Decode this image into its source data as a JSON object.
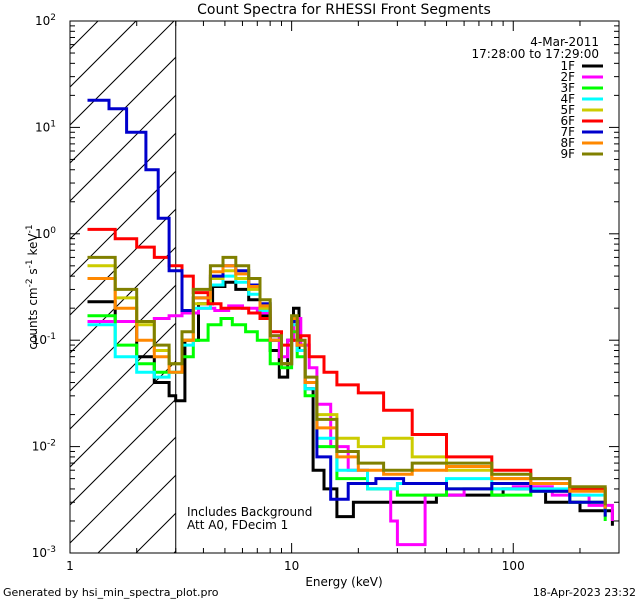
{
  "chart_data": {
    "type": "line",
    "title": "Count Spectra for RHESSI Front Segments",
    "xlabel": "Energy (keV)",
    "ylabel_parts": [
      "counts cm",
      "-2",
      " s",
      "-1",
      " keV",
      "-1"
    ],
    "x_scale": "log",
    "y_scale": "log",
    "xlim": [
      1,
      300
    ],
    "ylim": [
      0.001,
      100
    ],
    "x_ticks": [
      {
        "value": 1,
        "label": "1"
      },
      {
        "value": 10,
        "label": "10"
      },
      {
        "value": 100,
        "label": "100"
      }
    ],
    "y_ticks": [
      {
        "value": 0.001,
        "base": "10",
        "exp": "-3"
      },
      {
        "value": 0.01,
        "base": "10",
        "exp": "-2"
      },
      {
        "value": 0.1,
        "base": "10",
        "exp": "-1"
      },
      {
        "value": 1,
        "base": "10",
        "exp": "0"
      },
      {
        "value": 10,
        "base": "10",
        "exp": "1"
      },
      {
        "value": 100,
        "base": "10",
        "exp": "2"
      }
    ],
    "shaded_region_keV": [
      1,
      3
    ],
    "date": "4-Mar-2011",
    "time_range": "17:28:00 to 17:29:00",
    "annotations": [
      "Includes Background",
      "Att A0, FDecim 1"
    ],
    "series": [
      {
        "name": "1F",
        "color": "#000000",
        "points": [
          [
            1.2,
            0.23
          ],
          [
            1.6,
            0.15
          ],
          [
            2.0,
            0.07
          ],
          [
            2.4,
            0.04
          ],
          [
            2.8,
            0.03
          ],
          [
            3.0,
            0.027
          ],
          [
            3.3,
            0.1
          ],
          [
            3.8,
            0.22
          ],
          [
            4.4,
            0.32
          ],
          [
            5.0,
            0.35
          ],
          [
            5.6,
            0.3
          ],
          [
            6.4,
            0.24
          ],
          [
            7.2,
            0.17
          ],
          [
            8.0,
            0.08
          ],
          [
            8.8,
            0.045
          ],
          [
            9.6,
            0.1
          ],
          [
            10.2,
            0.2
          ],
          [
            10.8,
            0.08
          ],
          [
            11.5,
            0.035
          ],
          [
            12.5,
            0.006
          ],
          [
            14,
            0.004
          ],
          [
            16,
            0.0022
          ],
          [
            19,
            0.003
          ],
          [
            24,
            0.003
          ],
          [
            32,
            0.003
          ],
          [
            45,
            0.0035
          ],
          [
            60,
            0.0035
          ],
          [
            90,
            0.004
          ],
          [
            140,
            0.003
          ],
          [
            200,
            0.0025
          ],
          [
            280,
            0.0018
          ]
        ]
      },
      {
        "name": "2F",
        "color": "#ff00ff",
        "points": [
          [
            1.2,
            0.15
          ],
          [
            1.6,
            0.15
          ],
          [
            2.0,
            0.15
          ],
          [
            2.4,
            0.16
          ],
          [
            2.8,
            0.17
          ],
          [
            3.2,
            0.18
          ],
          [
            3.8,
            0.2
          ],
          [
            4.5,
            0.19
          ],
          [
            5.2,
            0.21
          ],
          [
            6.0,
            0.2
          ],
          [
            7.0,
            0.18
          ],
          [
            8.0,
            0.11
          ],
          [
            8.8,
            0.07
          ],
          [
            9.6,
            0.1
          ],
          [
            10.2,
            0.16
          ],
          [
            11.0,
            0.09
          ],
          [
            12,
            0.055
          ],
          [
            13,
            0.025
          ],
          [
            15,
            0.01
          ],
          [
            18,
            0.006
          ],
          [
            22,
            0.004
          ],
          [
            28,
            0.002
          ],
          [
            30,
            0.0012
          ],
          [
            40,
            0.0035
          ],
          [
            60,
            0.004
          ],
          [
            100,
            0.0042
          ],
          [
            150,
            0.0035
          ],
          [
            220,
            0.0028
          ],
          [
            280,
            0.002
          ]
        ]
      },
      {
        "name": "3F",
        "color": "#00ff00",
        "points": [
          [
            1.2,
            0.17
          ],
          [
            1.6,
            0.09
          ],
          [
            2.0,
            0.06
          ],
          [
            2.4,
            0.05
          ],
          [
            2.8,
            0.05
          ],
          [
            3.2,
            0.07
          ],
          [
            3.6,
            0.1
          ],
          [
            4.2,
            0.14
          ],
          [
            4.8,
            0.16
          ],
          [
            5.4,
            0.14
          ],
          [
            6.2,
            0.12
          ],
          [
            7.0,
            0.1
          ],
          [
            8.0,
            0.06
          ],
          [
            9.0,
            0.055
          ],
          [
            10.0,
            0.12
          ],
          [
            10.6,
            0.07
          ],
          [
            11.5,
            0.03
          ],
          [
            13,
            0.01
          ],
          [
            16,
            0.005
          ],
          [
            22,
            0.004
          ],
          [
            30,
            0.0035
          ],
          [
            50,
            0.004
          ],
          [
            80,
            0.0035
          ],
          [
            120,
            0.0038
          ],
          [
            180,
            0.003
          ],
          [
            260,
            0.002
          ]
        ]
      },
      {
        "name": "4F",
        "color": "#00ffff",
        "points": [
          [
            1.2,
            0.14
          ],
          [
            1.6,
            0.07
          ],
          [
            2.0,
            0.05
          ],
          [
            2.4,
            0.045
          ],
          [
            2.8,
            0.05
          ],
          [
            3.2,
            0.09
          ],
          [
            3.6,
            0.2
          ],
          [
            4.3,
            0.33
          ],
          [
            4.9,
            0.4
          ],
          [
            5.6,
            0.35
          ],
          [
            6.4,
            0.27
          ],
          [
            7.2,
            0.19
          ],
          [
            8.0,
            0.1
          ],
          [
            9.0,
            0.06
          ],
          [
            10.0,
            0.14
          ],
          [
            10.6,
            0.08
          ],
          [
            11.5,
            0.035
          ],
          [
            13,
            0.012
          ],
          [
            16,
            0.006
          ],
          [
            22,
            0.004
          ],
          [
            30,
            0.0045
          ],
          [
            50,
            0.005
          ],
          [
            80,
            0.004
          ],
          [
            120,
            0.004
          ],
          [
            180,
            0.0035
          ],
          [
            260,
            0.0025
          ]
        ]
      },
      {
        "name": "5F",
        "color": "#cccc00",
        "points": [
          [
            1.2,
            0.5
          ],
          [
            1.6,
            0.25
          ],
          [
            2.0,
            0.14
          ],
          [
            2.4,
            0.08
          ],
          [
            2.8,
            0.06
          ],
          [
            3.2,
            0.1
          ],
          [
            3.6,
            0.22
          ],
          [
            4.3,
            0.38
          ],
          [
            4.9,
            0.45
          ],
          [
            5.6,
            0.38
          ],
          [
            6.4,
            0.3
          ],
          [
            7.2,
            0.2
          ],
          [
            8.0,
            0.1
          ],
          [
            9.0,
            0.06
          ],
          [
            10.0,
            0.15
          ],
          [
            10.6,
            0.09
          ],
          [
            11.5,
            0.04
          ],
          [
            13,
            0.02
          ],
          [
            16,
            0.012
          ],
          [
            20,
            0.01
          ],
          [
            26,
            0.012
          ],
          [
            35,
            0.008
          ],
          [
            50,
            0.006
          ],
          [
            80,
            0.005
          ],
          [
            120,
            0.0045
          ],
          [
            180,
            0.004
          ],
          [
            260,
            0.0028
          ]
        ]
      },
      {
        "name": "6F",
        "color": "#ff0000",
        "points": [
          [
            1.2,
            1.1
          ],
          [
            1.6,
            0.9
          ],
          [
            2.0,
            0.75
          ],
          [
            2.4,
            0.6
          ],
          [
            2.8,
            0.5
          ],
          [
            3.2,
            0.4
          ],
          [
            3.6,
            0.28
          ],
          [
            4.2,
            0.22
          ],
          [
            4.8,
            0.2
          ],
          [
            5.6,
            0.2
          ],
          [
            6.4,
            0.18
          ],
          [
            7.2,
            0.16
          ],
          [
            8.0,
            0.12
          ],
          [
            9.0,
            0.09
          ],
          [
            10.0,
            0.1
          ],
          [
            11.0,
            0.11
          ],
          [
            12,
            0.07
          ],
          [
            14,
            0.05
          ],
          [
            16,
            0.038
          ],
          [
            20,
            0.032
          ],
          [
            26,
            0.022
          ],
          [
            35,
            0.013
          ],
          [
            50,
            0.008
          ],
          [
            80,
            0.006
          ],
          [
            120,
            0.005
          ],
          [
            180,
            0.004
          ],
          [
            260,
            0.003
          ]
        ]
      },
      {
        "name": "7F",
        "color": "#0000cc",
        "points": [
          [
            1.2,
            18
          ],
          [
            1.5,
            15
          ],
          [
            1.8,
            9
          ],
          [
            2.2,
            4
          ],
          [
            2.5,
            1.4
          ],
          [
            2.8,
            0.45
          ],
          [
            3.2,
            0.19
          ],
          [
            3.6,
            0.25
          ],
          [
            4.3,
            0.4
          ],
          [
            4.9,
            0.5
          ],
          [
            5.6,
            0.45
          ],
          [
            6.4,
            0.33
          ],
          [
            7.2,
            0.22
          ],
          [
            8.0,
            0.1
          ],
          [
            9.0,
            0.06
          ],
          [
            10.0,
            0.15
          ],
          [
            10.6,
            0.09
          ],
          [
            11.5,
            0.04
          ],
          [
            13,
            0.008
          ],
          [
            15,
            0.0032
          ],
          [
            18,
            0.0045
          ],
          [
            24,
            0.005
          ],
          [
            32,
            0.0045
          ],
          [
            50,
            0.004
          ],
          [
            80,
            0.0045
          ],
          [
            120,
            0.0038
          ],
          [
            180,
            0.003
          ],
          [
            260,
            0.0022
          ]
        ]
      },
      {
        "name": "8F",
        "color": "#ff8800",
        "points": [
          [
            1.2,
            0.38
          ],
          [
            1.6,
            0.2
          ],
          [
            2.0,
            0.1
          ],
          [
            2.4,
            0.07
          ],
          [
            2.8,
            0.05
          ],
          [
            3.2,
            0.1
          ],
          [
            3.6,
            0.25
          ],
          [
            4.3,
            0.44
          ],
          [
            4.9,
            0.5
          ],
          [
            5.6,
            0.42
          ],
          [
            6.4,
            0.32
          ],
          [
            7.2,
            0.21
          ],
          [
            8.0,
            0.1
          ],
          [
            9.0,
            0.06
          ],
          [
            10.0,
            0.16
          ],
          [
            10.6,
            0.09
          ],
          [
            11.5,
            0.04
          ],
          [
            13,
            0.015
          ],
          [
            16,
            0.008
          ],
          [
            20,
            0.006
          ],
          [
            26,
            0.0055
          ],
          [
            35,
            0.006
          ],
          [
            50,
            0.0065
          ],
          [
            80,
            0.005
          ],
          [
            120,
            0.0045
          ],
          [
            180,
            0.0038
          ],
          [
            260,
            0.0026
          ]
        ]
      },
      {
        "name": "9F",
        "color": "#808000",
        "points": [
          [
            1.2,
            0.6
          ],
          [
            1.6,
            0.3
          ],
          [
            2.0,
            0.15
          ],
          [
            2.4,
            0.09
          ],
          [
            2.8,
            0.06
          ],
          [
            3.2,
            0.12
          ],
          [
            3.6,
            0.3
          ],
          [
            4.3,
            0.5
          ],
          [
            4.9,
            0.6
          ],
          [
            5.6,
            0.5
          ],
          [
            6.4,
            0.38
          ],
          [
            7.2,
            0.24
          ],
          [
            8.0,
            0.11
          ],
          [
            9.0,
            0.06
          ],
          [
            10.0,
            0.17
          ],
          [
            10.6,
            0.1
          ],
          [
            11.5,
            0.045
          ],
          [
            13,
            0.018
          ],
          [
            16,
            0.009
          ],
          [
            20,
            0.007
          ],
          [
            26,
            0.006
          ],
          [
            35,
            0.007
          ],
          [
            50,
            0.007
          ],
          [
            80,
            0.0055
          ],
          [
            120,
            0.005
          ],
          [
            180,
            0.0042
          ],
          [
            260,
            0.0028
          ]
        ]
      }
    ]
  },
  "footer": {
    "generated": "Generated by hsi_min_spectra_plot.pro",
    "timestamp": "18-Apr-2023 23:32"
  }
}
